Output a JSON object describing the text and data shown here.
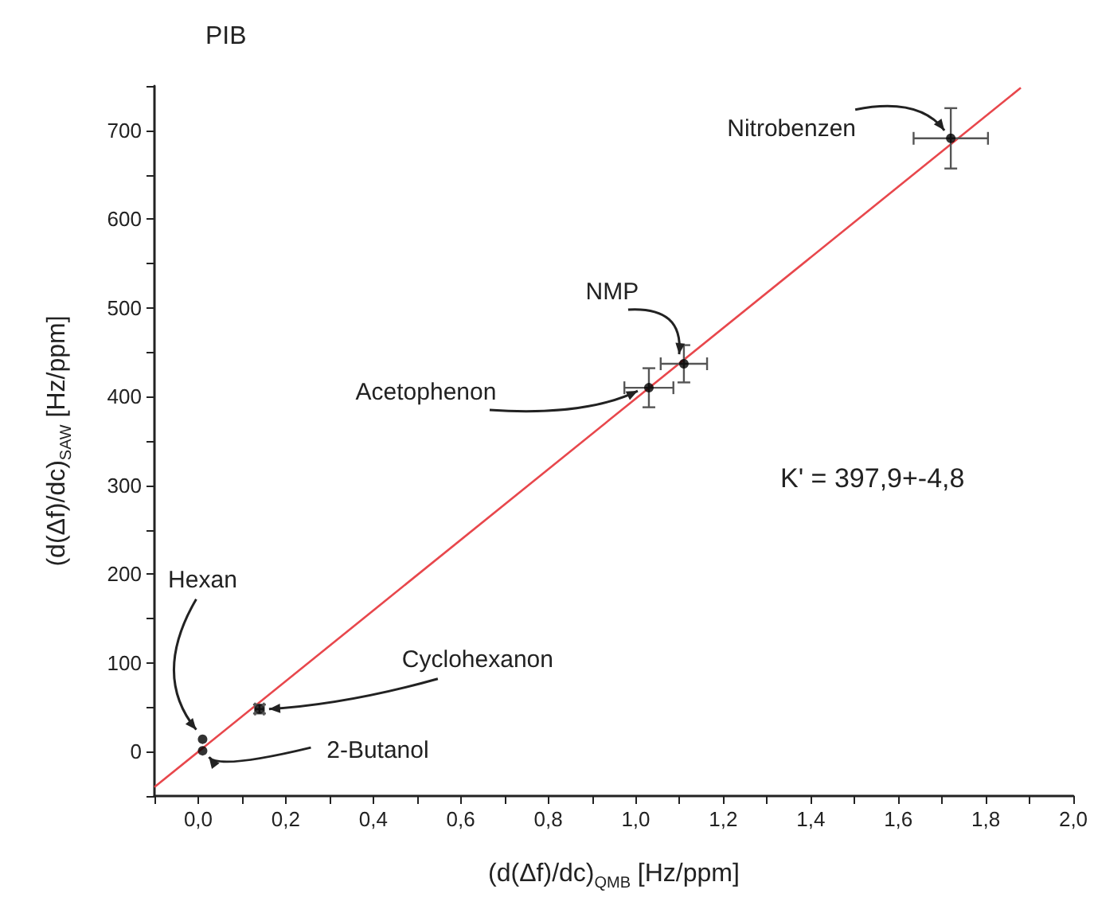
{
  "chart_data": {
    "type": "scatter",
    "title": "PIB",
    "xlabel": "(d(Δf)/dc)$_{QMB}$ [Hz/ppm]",
    "ylabel": "(d(Δf)/dc)$_{SAW}$ [Hz/ppm]",
    "xlim": [
      -0.1,
      2.0
    ],
    "ylim": [
      -50,
      750
    ],
    "xticks": [
      {
        "value": -0.1,
        "label": null
      },
      {
        "value": 0,
        "label": "0,0"
      },
      {
        "value": 0.1,
        "label": null
      },
      {
        "value": 0.2,
        "label": "0,2"
      },
      {
        "value": 0.3,
        "label": null
      },
      {
        "value": 0.4,
        "label": "0,4"
      },
      {
        "value": 0.5,
        "label": null
      },
      {
        "value": 0.6,
        "label": "0,6"
      },
      {
        "value": 0.7,
        "label": null
      },
      {
        "value": 0.8,
        "label": "0,8"
      },
      {
        "value": 0.9,
        "label": null
      },
      {
        "value": 1.0,
        "label": "1,0"
      },
      {
        "value": 1.1,
        "label": null
      },
      {
        "value": 1.2,
        "label": "1,2"
      },
      {
        "value": 1.3,
        "label": null
      },
      {
        "value": 1.4,
        "label": "1,4"
      },
      {
        "value": 1.5,
        "label": null
      },
      {
        "value": 1.6,
        "label": "1,6"
      },
      {
        "value": 1.7,
        "label": null
      },
      {
        "value": 1.8,
        "label": "1,8"
      },
      {
        "value": 1.9,
        "label": null
      },
      {
        "value": 2.0,
        "label": "2,0"
      }
    ],
    "yticks": [
      {
        "value": -50,
        "label": null
      },
      0,
      {
        "value": 50,
        "label": null
      },
      100,
      {
        "value": 150,
        "label": null
      },
      200,
      {
        "value": 250,
        "label": null
      },
      300,
      {
        "value": 350,
        "label": null
      },
      400,
      {
        "value": 450,
        "label": null
      },
      500,
      {
        "value": 550,
        "label": null
      },
      600,
      {
        "value": 650,
        "label": null
      },
      700,
      {
        "value": 750,
        "label": null
      }
    ],
    "series": [
      {
        "color": "#000000",
        "marker": "circle",
        "x": [
          0.01,
          0.01,
          0.14,
          1.03,
          1.11,
          1.72
        ],
        "values": [
          14,
          1,
          48,
          410,
          437,
          691
        ],
        "errors": [
          null,
          null,
          5,
          22,
          21,
          34
        ],
        "xerrors": [
          null,
          null,
          0.01,
          0.056,
          0.053,
          0.085
        ]
      },
      {
        "type": "line",
        "color": "#e8474c",
        "x": [
          -0.1,
          1.88
        ],
        "values": [
          -40,
          748
        ]
      }
    ],
    "annotations": [
      {
        "text": "Hexan",
        "x": 0.01,
        "y": 14
      },
      {
        "text": "2-Butanol",
        "x": 0.01,
        "y": 1
      },
      {
        "text": "Cyclohexanon",
        "x": 0.14,
        "y": 48
      },
      {
        "text": "Acetophenon",
        "x": 1.03,
        "y": 410
      },
      {
        "text": "NMP",
        "x": 1.11,
        "y": 437
      },
      {
        "text": "Nitrobenzen",
        "x": 1.72,
        "y": 691
      },
      "K' = 397,9+-4,8"
    ]
  }
}
